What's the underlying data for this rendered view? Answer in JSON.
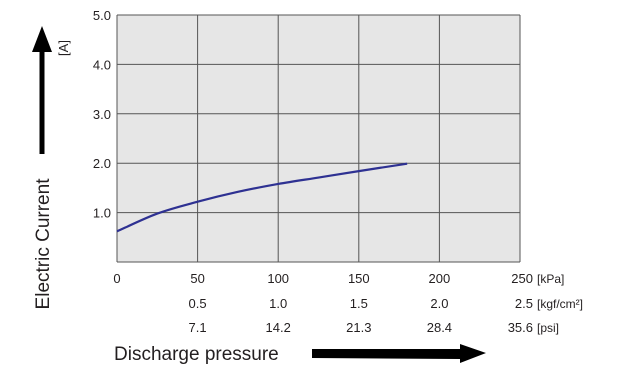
{
  "chart_data": {
    "type": "line",
    "ylabel": "Electric Current",
    "yunit": "[A]",
    "xlabel": "Discharge pressure",
    "xlim": [
      0,
      250
    ],
    "ylim": [
      0,
      5.0
    ],
    "grid": true,
    "plot_background": "#e6e6e6",
    "grid_color": "#555555",
    "line_color": "#2e3192",
    "yticks": [
      {
        "value": 1.0,
        "label": "1.0"
      },
      {
        "value": 2.0,
        "label": "2.0"
      },
      {
        "value": 3.0,
        "label": "3.0"
      },
      {
        "value": 4.0,
        "label": "4.0"
      },
      {
        "value": 5.0,
        "label": "5.0"
      }
    ],
    "x_axes": [
      {
        "unit": "[kPa]",
        "ticks": [
          "0",
          "50",
          "100",
          "150",
          "200",
          "250"
        ]
      },
      {
        "unit": "[kgf/cm²]",
        "ticks": [
          "",
          "0.5",
          "1.0",
          "1.5",
          "2.0",
          "2.5"
        ]
      },
      {
        "unit": "[psi]",
        "ticks": [
          "",
          "7.1",
          "14.2",
          "21.3",
          "28.4",
          "35.6"
        ]
      }
    ],
    "xtick_values": [
      0,
      50,
      100,
      150,
      200,
      250
    ],
    "series": [
      {
        "x": [
          0,
          25,
          50,
          75,
          100,
          125,
          150,
          180
        ],
        "y": [
          0.62,
          0.98,
          1.22,
          1.42,
          1.58,
          1.71,
          1.84,
          1.99
        ]
      }
    ]
  }
}
